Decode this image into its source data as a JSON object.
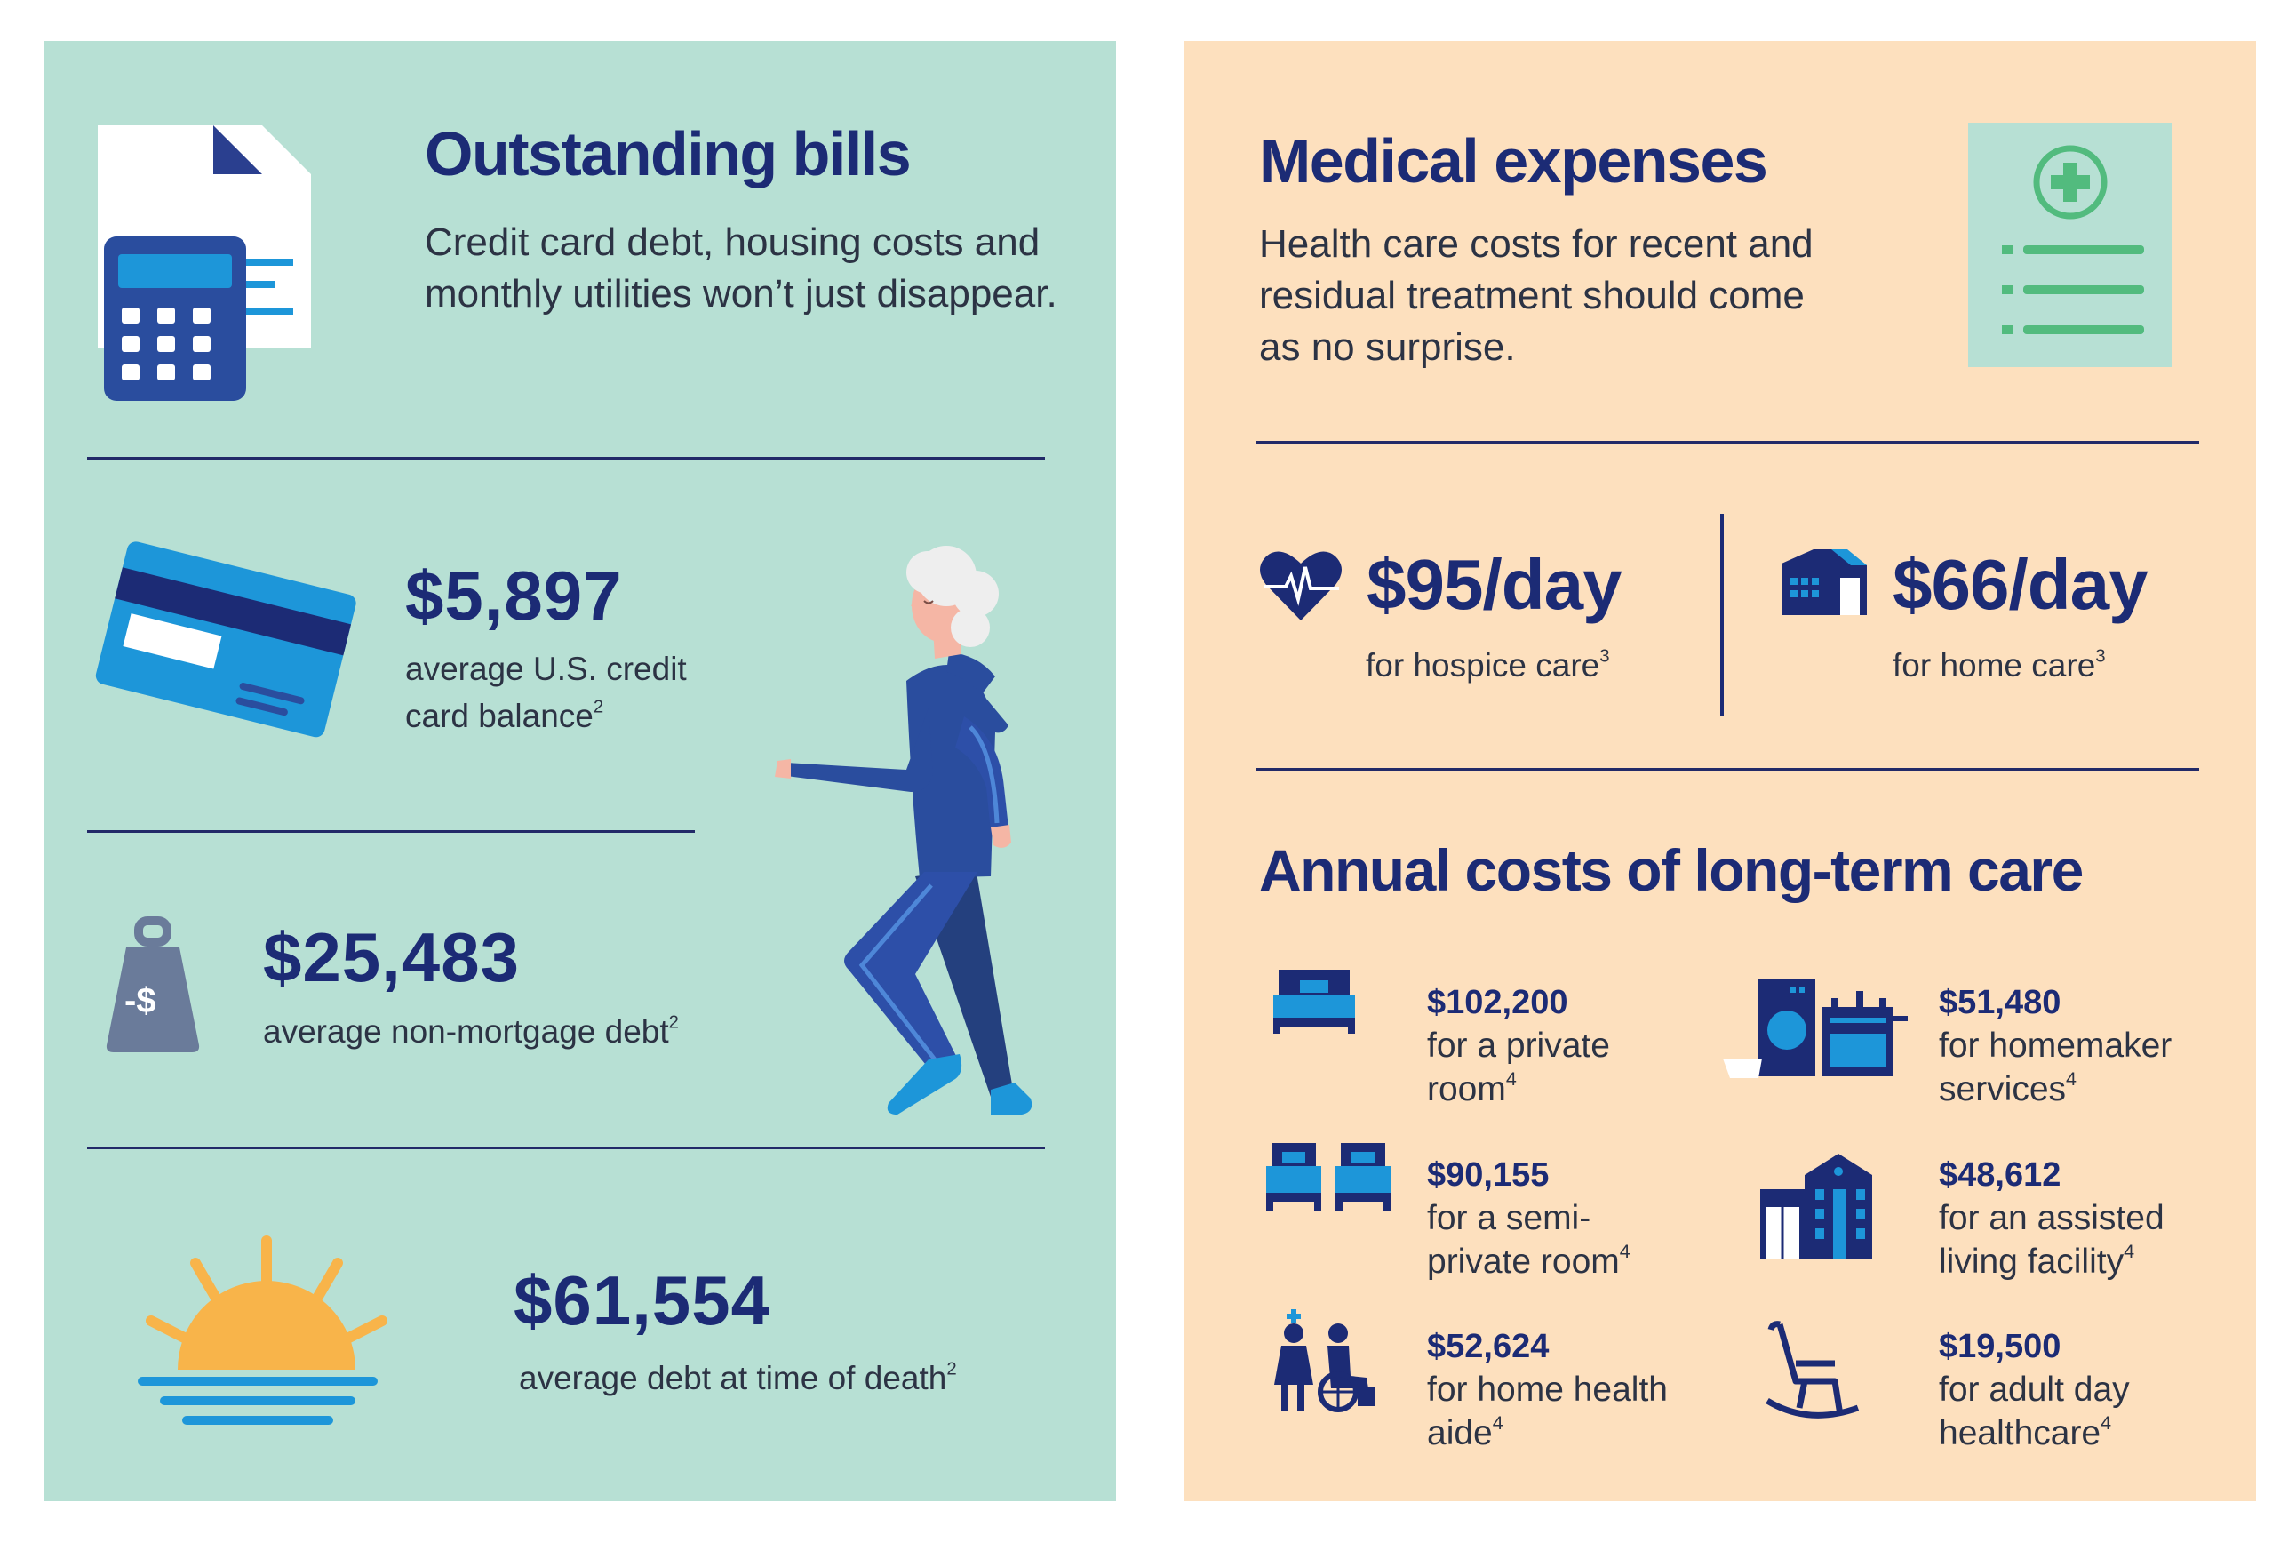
{
  "left": {
    "title": "Outstanding bills",
    "description": "Credit card debt, housing costs and monthly utilities won’t just disappear.",
    "stats": [
      {
        "value": "$5,897",
        "label": "average U.S. credit card balance",
        "note": "2"
      },
      {
        "value": "$25,483",
        "label": "average non-mortgage debt",
        "note": "2"
      },
      {
        "value": "$61,554",
        "label": "average debt at time of death",
        "note": "2"
      }
    ],
    "weight_icon_text": "-$"
  },
  "right": {
    "title": "Medical expenses",
    "description": "Health care costs for recent and residual treatment should come as no surprise.",
    "daily": [
      {
        "value": "$95/day",
        "label": "for hospice care",
        "note": "3"
      },
      {
        "value": "$66/day",
        "label": "for home care",
        "note": "3"
      }
    ],
    "annual_title": "Annual costs of long-term care",
    "annual_items": [
      {
        "amount": "$102,200",
        "label": "for a private room",
        "note": "4",
        "icon": "bed-icon"
      },
      {
        "amount": "$51,480",
        "label": "for homemaker services",
        "note": "4",
        "icon": "appliances-icon"
      },
      {
        "amount": "$90,155",
        "label": "for a semi-private room",
        "note": "4",
        "icon": "two-beds-icon"
      },
      {
        "amount": "$48,612",
        "label": "for an assisted living facility",
        "note": "4",
        "icon": "building-icon"
      },
      {
        "amount": "$52,624",
        "label": "for home health aide",
        "note": "4",
        "icon": "nurse-wheelchair-icon"
      },
      {
        "amount": "$19,500",
        "label": "for adult day healthcare",
        "note": "4",
        "icon": "rocking-chair-icon"
      }
    ]
  },
  "colors": {
    "left_bg": "#b7e0d4",
    "right_bg": "#fde0be",
    "navy": "#1c2b75",
    "accent_blue": "#1d96d9",
    "sun": "#f8b44a",
    "green": "#52bb7e"
  }
}
